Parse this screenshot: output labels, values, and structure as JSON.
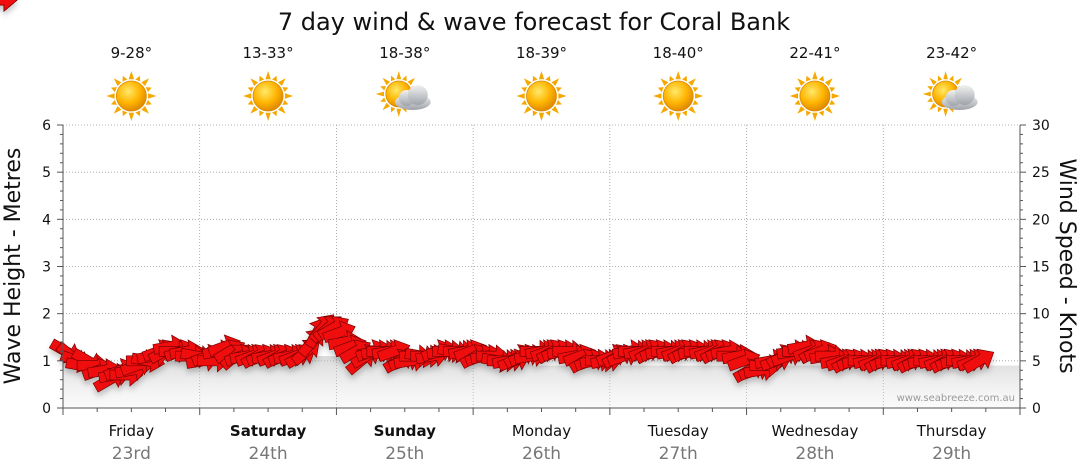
{
  "chart_data": {
    "type": "area",
    "title": "7 day wind & wave forecast for Coral Bank",
    "left_axis": {
      "label": "Wave Height - Metres",
      "min": 0,
      "max": 6,
      "ticks": [
        "0",
        "1",
        "2",
        "3",
        "4",
        "5",
        "6"
      ]
    },
    "right_axis": {
      "label": "Wind Speed - Knots",
      "min": 0,
      "max": 30,
      "ticks": [
        "0",
        "5",
        "10",
        "15",
        "20",
        "25",
        "30"
      ]
    },
    "days": [
      {
        "name": "Friday",
        "date": "23rd",
        "temp": "9-28°",
        "weather": "sunny",
        "bold": false
      },
      {
        "name": "Saturday",
        "date": "24th",
        "temp": "13-33°",
        "weather": "sunny",
        "bold": true
      },
      {
        "name": "Sunday",
        "date": "25th",
        "temp": "18-38°",
        "weather": "partly-cloudy",
        "bold": true
      },
      {
        "name": "Monday",
        "date": "26th",
        "temp": "18-39°",
        "weather": "sunny",
        "bold": false
      },
      {
        "name": "Tuesday",
        "date": "27th",
        "temp": "18-40°",
        "weather": "sunny",
        "bold": false
      },
      {
        "name": "Wednesday",
        "date": "28th",
        "temp": "22-41°",
        "weather": "sunny",
        "bold": false
      },
      {
        "name": "Thursday",
        "date": "29th",
        "temp": "23-42°",
        "weather": "partly-cloudy",
        "bold": false
      }
    ],
    "wave_height_m": [
      1.0,
      1.0,
      0.9,
      0.9,
      0.9,
      0.8,
      0.8,
      0.8,
      0.8,
      0.8,
      0.8,
      0.9,
      0.9,
      0.9,
      0.9,
      0.9,
      0.9,
      0.9,
      1.0,
      1.0,
      1.0,
      1.0,
      1.0,
      1.0,
      1.0,
      1.0,
      1.0,
      1.0,
      1.0,
      1.0,
      1.0,
      1.0,
      1.1,
      1.1,
      1.1,
      1.1,
      1.1,
      1.1,
      1.1,
      1.1,
      1.1,
      1.1,
      1.1,
      1.1,
      1.1,
      1.1,
      1.1,
      1.1,
      1.0,
      1.0,
      1.0,
      1.0,
      1.0,
      1.0,
      1.0,
      1.0,
      1.0,
      1.0,
      1.0,
      1.0,
      1.0,
      1.0,
      1.0,
      1.0,
      1.0,
      1.0,
      1.0,
      1.0,
      1.0,
      1.0,
      1.0,
      1.0,
      1.0,
      1.0,
      1.0,
      1.0,
      1.0,
      1.0,
      1.0,
      1.0,
      0.9,
      0.9,
      0.9,
      0.9,
      0.9,
      0.9,
      0.9,
      0.9,
      0.9,
      0.9,
      0.9,
      0.9,
      0.9,
      0.9,
      0.9,
      0.9,
      0.9,
      0.9,
      0.9,
      0.9,
      0.9,
      0.9,
      0.9,
      0.9,
      0.9,
      0.9,
      0.9,
      0.9,
      0.9,
      0.9,
      0.9,
      0.9,
      0.9,
      0.9,
      0.9,
      0.9,
      0.9,
      0.9,
      0.9,
      0.9,
      0.9,
      0.9,
      0.9,
      0.9,
      0.9,
      0.9,
      0.9,
      0.9,
      0.9,
      0.9,
      0.9,
      0.9,
      0.9,
      0.9,
      0.9,
      0.9,
      0.9,
      0.9,
      0.9,
      0.9,
      0.9,
      0.9,
      0.9,
      0.9,
      0.9,
      0.9,
      0.9,
      0.9,
      0.9,
      0.9,
      0.9,
      0.9,
      0.9,
      0.9,
      0.9,
      0.9,
      0.9,
      0.9,
      0.9,
      0.9,
      0.9,
      0.9,
      0.9,
      0.9
    ],
    "wind_knots": [
      6,
      5.5,
      5,
      4.5,
      5,
      4.5,
      4,
      4,
      3,
      3.5,
      4,
      3.5,
      4,
      4.5,
      5,
      5,
      5.5,
      6,
      6,
      6.5,
      6,
      6,
      6,
      5.5,
      5.5,
      5,
      5.5,
      5,
      6,
      6.5,
      6,
      5.5,
      5.5,
      5.5,
      5.5,
      5.5,
      5.5,
      5.5,
      5.5,
      5.5,
      5.5,
      5.5,
      5.5,
      5.5,
      6,
      7,
      8,
      8.5,
      8.5,
      8.5,
      8,
      7,
      6.5,
      6,
      5,
      5.5,
      6,
      6,
      6,
      6,
      6,
      5,
      5,
      5,
      5.5,
      5.5,
      5.5,
      5.5,
      6,
      6,
      6,
      6,
      6,
      6,
      6,
      5.5,
      5.5,
      5.5,
      5.5,
      5,
      5,
      5,
      5,
      5.5,
      5.5,
      5.5,
      6,
      6,
      6,
      6,
      6,
      6,
      6,
      5.5,
      5.5,
      5,
      5,
      5,
      5,
      5,
      5.5,
      5.5,
      5.5,
      6,
      6,
      6,
      6,
      6,
      6,
      6,
      6,
      6,
      6,
      6,
      6,
      6,
      6,
      6,
      6,
      6,
      6,
      6,
      5.5,
      5.5,
      5,
      4,
      4,
      4,
      4.5,
      5,
      5,
      5.5,
      5.5,
      6,
      6,
      6.5,
      6,
      6,
      6,
      5.5,
      5.5,
      5,
      5,
      5,
      5,
      5,
      5,
      5,
      5,
      5,
      5,
      5,
      5,
      5,
      5,
      5,
      5,
      5,
      5,
      5,
      5,
      5,
      5,
      5,
      5,
      5,
      5,
      5,
      5,
      5,
      5,
      5,
      5,
      5,
      5
    ],
    "wind_direction_deg": [
      300,
      310,
      290,
      280,
      300,
      270,
      250,
      260,
      240,
      260,
      250,
      270,
      260,
      250,
      270,
      280,
      260,
      250,
      240,
      260,
      270,
      250,
      260,
      270,
      280,
      260,
      250,
      270,
      260,
      250,
      240,
      230,
      250,
      260,
      250,
      240,
      250,
      260,
      250,
      240,
      250,
      260,
      250,
      240,
      230,
      220,
      210,
      220,
      230,
      240,
      250,
      260,
      250,
      240,
      230,
      240,
      250,
      260,
      270,
      260,
      250,
      240,
      250,
      260,
      270,
      280,
      270,
      260,
      250,
      260,
      270,
      280,
      270,
      260,
      250,
      240,
      250,
      260,
      270,
      280,
      270,
      260,
      250,
      240,
      250,
      260,
      270,
      260,
      250,
      240,
      250,
      260,
      270,
      260,
      250,
      240,
      250,
      260,
      270,
      260,
      250,
      240,
      250,
      260,
      270,
      260,
      250,
      240,
      250,
      260,
      270,
      260,
      250,
      240,
      250,
      260,
      270,
      260,
      250,
      240,
      250,
      260,
      270,
      260,
      250,
      240,
      250,
      260,
      270,
      260,
      250,
      240,
      250,
      260,
      270,
      260,
      250,
      240,
      250,
      260,
      270,
      260,
      250,
      240,
      250,
      260,
      270,
      260,
      250,
      240,
      250,
      260,
      270,
      260,
      250,
      240,
      250,
      260,
      270,
      260,
      250,
      240,
      250,
      260,
      270,
      260,
      250,
      240
    ],
    "credit": "www.seabreeze.com.au"
  }
}
